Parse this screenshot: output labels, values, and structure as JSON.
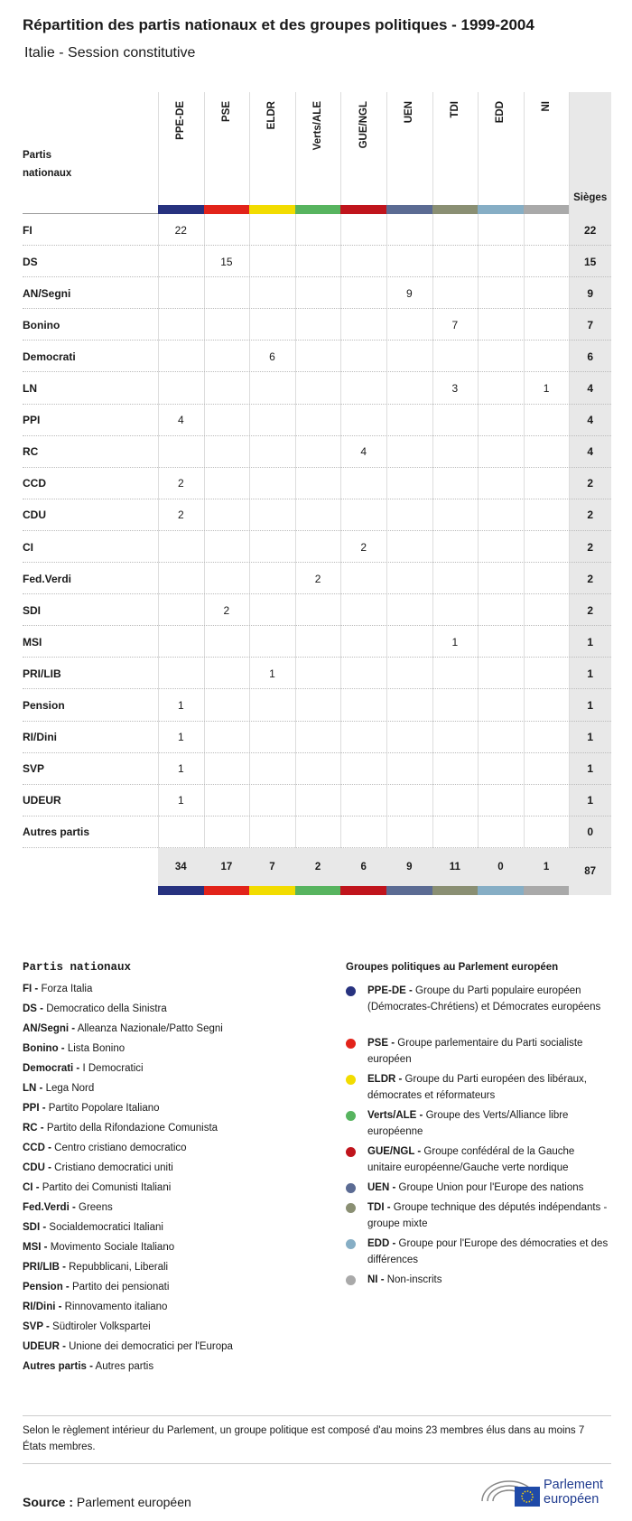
{
  "header": {
    "title": "Répartition des partis nationaux et des groupes politiques - 1999-2004",
    "subtitle": "Italie - Session constitutive"
  },
  "table": {
    "corner": "Partis nationaux",
    "total_header": "Sièges",
    "groups": [
      {
        "name": "PPE-DE",
        "color": "#27327f"
      },
      {
        "name": "PSE",
        "color": "#e2231a"
      },
      {
        "name": "ELDR",
        "color": "#f2dc00"
      },
      {
        "name": "Verts/ALE",
        "color": "#57b45f"
      },
      {
        "name": "GUE/NGL",
        "color": "#c0141c"
      },
      {
        "name": "UEN",
        "color": "#5b6b93"
      },
      {
        "name": "TDI",
        "color": "#8a8f73"
      },
      {
        "name": "EDD",
        "color": "#86aec5"
      },
      {
        "name": "NI",
        "color": "#a9a9a9"
      }
    ],
    "rows": [
      {
        "party": "FI",
        "cells": [
          22,
          null,
          null,
          null,
          null,
          null,
          null,
          null,
          null
        ],
        "total": 22
      },
      {
        "party": "DS",
        "cells": [
          null,
          15,
          null,
          null,
          null,
          null,
          null,
          null,
          null
        ],
        "total": 15
      },
      {
        "party": "AN/Segni",
        "cells": [
          null,
          null,
          null,
          null,
          null,
          9,
          null,
          null,
          null
        ],
        "total": 9
      },
      {
        "party": "Bonino",
        "cells": [
          null,
          null,
          null,
          null,
          null,
          null,
          7,
          null,
          null
        ],
        "total": 7
      },
      {
        "party": "Democrati",
        "cells": [
          null,
          null,
          6,
          null,
          null,
          null,
          null,
          null,
          null
        ],
        "total": 6
      },
      {
        "party": "LN",
        "cells": [
          null,
          null,
          null,
          null,
          null,
          null,
          3,
          null,
          1
        ],
        "total": 4
      },
      {
        "party": "PPI",
        "cells": [
          4,
          null,
          null,
          null,
          null,
          null,
          null,
          null,
          null
        ],
        "total": 4
      },
      {
        "party": "RC",
        "cells": [
          null,
          null,
          null,
          null,
          4,
          null,
          null,
          null,
          null
        ],
        "total": 4
      },
      {
        "party": "CCD",
        "cells": [
          2,
          null,
          null,
          null,
          null,
          null,
          null,
          null,
          null
        ],
        "total": 2
      },
      {
        "party": "CDU",
        "cells": [
          2,
          null,
          null,
          null,
          null,
          null,
          null,
          null,
          null
        ],
        "total": 2
      },
      {
        "party": "CI",
        "cells": [
          null,
          null,
          null,
          null,
          2,
          null,
          null,
          null,
          null
        ],
        "total": 2
      },
      {
        "party": "Fed.Verdi",
        "cells": [
          null,
          null,
          null,
          2,
          null,
          null,
          null,
          null,
          null
        ],
        "total": 2
      },
      {
        "party": "SDI",
        "cells": [
          null,
          2,
          null,
          null,
          null,
          null,
          null,
          null,
          null
        ],
        "total": 2
      },
      {
        "party": "MSI",
        "cells": [
          null,
          null,
          null,
          null,
          null,
          null,
          1,
          null,
          null
        ],
        "total": 1
      },
      {
        "party": "PRI/LIB",
        "cells": [
          null,
          null,
          1,
          null,
          null,
          null,
          null,
          null,
          null
        ],
        "total": 1
      },
      {
        "party": "Pension",
        "cells": [
          1,
          null,
          null,
          null,
          null,
          null,
          null,
          null,
          null
        ],
        "total": 1
      },
      {
        "party": "RI/Dini",
        "cells": [
          1,
          null,
          null,
          null,
          null,
          null,
          null,
          null,
          null
        ],
        "total": 1
      },
      {
        "party": "SVP",
        "cells": [
          1,
          null,
          null,
          null,
          null,
          null,
          null,
          null,
          null
        ],
        "total": 1
      },
      {
        "party": "UDEUR",
        "cells": [
          1,
          null,
          null,
          null,
          null,
          null,
          null,
          null,
          null
        ],
        "total": 1
      },
      {
        "party": "Autres partis",
        "cells": [
          null,
          null,
          null,
          null,
          null,
          null,
          null,
          null,
          null
        ],
        "total": 0
      }
    ],
    "totals": [
      34,
      17,
      7,
      2,
      6,
      9,
      11,
      0,
      1
    ],
    "grand_total": 87
  },
  "legend_parties": {
    "title": "Partis nationaux",
    "items": [
      {
        "term": "FI -",
        "text": "Forza Italia"
      },
      {
        "term": "DS -",
        "text": "Democratico della Sinistra"
      },
      {
        "term": "AN/Segni -",
        "text": "Alleanza Nazionale/Patto Segni"
      },
      {
        "term": "Bonino -",
        "text": "Lista Bonino"
      },
      {
        "term": "Democrati -",
        "text": "I Democratici"
      },
      {
        "term": "LN -",
        "text": "Lega Nord"
      },
      {
        "term": "PPI -",
        "text": "Partito Popolare Italiano"
      },
      {
        "term": "RC -",
        "text": "Partito della Rifondazione Comunista"
      },
      {
        "term": "CCD -",
        "text": "Centro cristiano democratico"
      },
      {
        "term": "CDU -",
        "text": "Cristiano democratici uniti"
      },
      {
        "term": "CI -",
        "text": "Partito dei Comunisti Italiani"
      },
      {
        "term": "Fed.Verdi -",
        "text": "Greens"
      },
      {
        "term": "SDI -",
        "text": "Socialdemocratici Italiani"
      },
      {
        "term": "MSI -",
        "text": "Movimento Sociale Italiano"
      },
      {
        "term": "PRI/LIB -",
        "text": "Repubblicani, Liberali"
      },
      {
        "term": "Pension -",
        "text": "Partito dei pensionati"
      },
      {
        "term": "RI/Dini -",
        "text": "Rinnovamento italiano"
      },
      {
        "term": "SVP -",
        "text": "Südtiroler Volkspartei"
      },
      {
        "term": "UDEUR -",
        "text": "Unione dei democratici per l'Europa"
      },
      {
        "term": "Autres partis -",
        "text": "Autres partis"
      }
    ]
  },
  "legend_groups": {
    "title": "Groupes politiques au Parlement européen",
    "items": [
      {
        "term": "PPE-DE -",
        "text": "Groupe du Parti populaire européen (Démocrates-Chrétiens) et Démocrates européens"
      },
      {
        "term": "PSE -",
        "text": "Groupe parlementaire du Parti socialiste européen"
      },
      {
        "term": "ELDR -",
        "text": "Groupe du Parti européen des libéraux, démocrates et réformateurs"
      },
      {
        "term": "Verts/ALE -",
        "text": "Groupe des Verts/Alliance libre européenne"
      },
      {
        "term": "GUE/NGL -",
        "text": "Groupe confédéral de la Gauche unitaire européenne/Gauche verte nordique"
      },
      {
        "term": "UEN -",
        "text": "Groupe Union pour l'Europe des nations"
      },
      {
        "term": "TDI -",
        "text": "Groupe technique des députés indépendants - groupe mixte"
      },
      {
        "term": "EDD -",
        "text": "Groupe pour l'Europe des démocraties et des différences"
      },
      {
        "term": "NI -",
        "text": "Non-inscrits"
      }
    ]
  },
  "note": "Selon le règlement intérieur du Parlement, un groupe politique est composé d'au moins 23 membres élus dans au moins 7 États membres.",
  "source": {
    "label": "Source :",
    "text": "Parlement européen"
  },
  "logo": "Parlement européen"
}
